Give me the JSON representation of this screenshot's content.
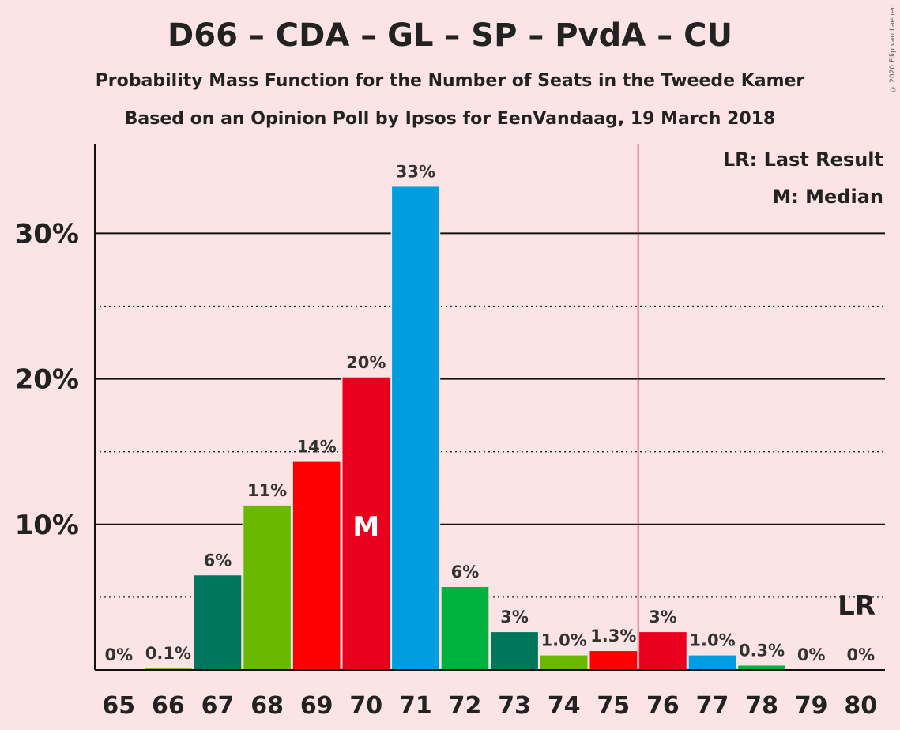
{
  "title": "D66 – CDA – GL – SP – PvdA – CU",
  "subtitle1": "Probability Mass Function for the Number of Seats in the Tweede Kamer",
  "subtitle2": "Based on an Opinion Poll by Ipsos for EenVandaag, 19 March 2018",
  "copyright": "© 2020 Filip van Laenen",
  "legend": {
    "last_result": "LR: Last Result",
    "median": "M: Median"
  },
  "markers": {
    "median_label": "M",
    "median_seat": 70,
    "last_result_label": "LR",
    "last_result_seat": 76
  },
  "colors": {
    "background": "#fce4e6",
    "D66": "#00765c",
    "CDA": "#6ab800",
    "SP": "#ff0000",
    "PvdA": "#e8001c",
    "GL": "#009ee0",
    "CU": "#00b140",
    "lr_line": "#c0002a"
  },
  "chart_data": {
    "type": "bar",
    "categories": [
      "65",
      "66",
      "67",
      "68",
      "69",
      "70",
      "71",
      "72",
      "73",
      "74",
      "75",
      "76",
      "77",
      "78",
      "79",
      "80"
    ],
    "values": [
      0,
      0.1,
      6.5,
      11.3,
      14.3,
      20.1,
      33.2,
      5.7,
      2.6,
      1.0,
      1.3,
      2.6,
      1.0,
      0.3,
      0,
      0
    ],
    "data_labels": [
      "0%",
      "0.1%",
      "6%",
      "11%",
      "14%",
      "20%",
      "33%",
      "6%",
      "3%",
      "1.0%",
      "1.3%",
      "3%",
      "1.0%",
      "0.3%",
      "0%",
      "0%"
    ],
    "bar_colors": [
      "#00765c",
      "#6ab800",
      "#00765c",
      "#6ab800",
      "#ff0000",
      "#e8001c",
      "#009ee0",
      "#00b140",
      "#00765c",
      "#6ab800",
      "#ff0000",
      "#e8001c",
      "#009ee0",
      "#00b140",
      "#00765c",
      "#6ab800"
    ],
    "yticks": [
      10,
      20,
      30
    ],
    "ytick_labels": [
      "10%",
      "20%",
      "30%"
    ],
    "ylim": [
      0,
      36
    ],
    "grid": true
  }
}
